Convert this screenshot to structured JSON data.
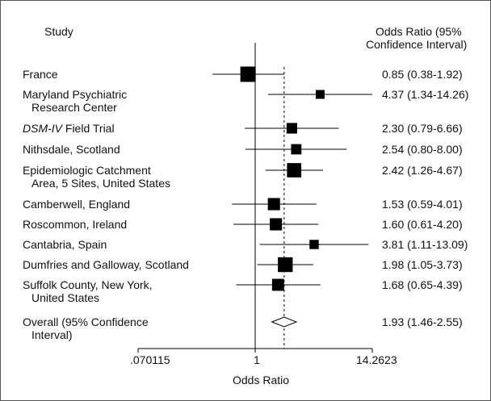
{
  "chart_data": {
    "type": "forest",
    "xscale": "log",
    "xlim": [
      0.070115,
      14.2623
    ],
    "xticks": [
      "0.070115",
      "1",
      "14.2623"
    ],
    "tick_labels": [
      ".070115",
      "1",
      "14.2623"
    ],
    "xlabel": "Odds Ratio",
    "reference_line": 1,
    "summary_line": 1.93,
    "column_headers": {
      "study": "Study",
      "or_line1": "Odds Ratio (95%",
      "or_line2": "Confidence Interval)"
    },
    "studies": [
      {
        "label_lines": [
          "France"
        ],
        "or": 0.85,
        "lo": 0.38,
        "hi": 1.92,
        "text": "0.85 (0.38-1.92)",
        "weight": 1.0
      },
      {
        "label_lines": [
          "Maryland Psychiatric",
          "Research Center"
        ],
        "or": 4.37,
        "lo": 1.34,
        "hi": 14.26,
        "text": "4.37 (1.34-14.26)",
        "weight": 0.38
      },
      {
        "label_lines": [
          "DSM-IV Field Trial"
        ],
        "italic_prefix": "DSM-IV",
        "or": 2.3,
        "lo": 0.79,
        "hi": 6.66,
        "text": "2.30 (0.79-6.66)",
        "weight": 0.55
      },
      {
        "label_lines": [
          "Nithsdale, Scotland"
        ],
        "or": 2.54,
        "lo": 0.8,
        "hi": 8.0,
        "text": "2.54 (0.80-8.00)",
        "weight": 0.52
      },
      {
        "label_lines": [
          "Epidemiologic Catchment",
          "Area, 5 Sites, United States"
        ],
        "or": 2.42,
        "lo": 1.26,
        "hi": 4.67,
        "text": "2.42 (1.26-4.67)",
        "weight": 0.9
      },
      {
        "label_lines": [
          "Camberwell, England"
        ],
        "or": 1.53,
        "lo": 0.59,
        "hi": 4.01,
        "text": "1.53 (0.59-4.01)",
        "weight": 0.7
      },
      {
        "label_lines": [
          "Roscommon, Ireland"
        ],
        "or": 1.6,
        "lo": 0.61,
        "hi": 4.2,
        "text": "1.60 (0.61-4.20)",
        "weight": 0.7
      },
      {
        "label_lines": [
          "Cantabria, Spain"
        ],
        "or": 3.81,
        "lo": 1.11,
        "hi": 13.09,
        "text": "3.81 (1.11-13.09)",
        "weight": 0.42
      },
      {
        "label_lines": [
          "Dumfries and Galloway, Scotland"
        ],
        "or": 1.98,
        "lo": 1.05,
        "hi": 3.73,
        "text": "1.98 (1.05-3.73)",
        "weight": 0.95
      },
      {
        "label_lines": [
          "Suffolk County, New York,",
          "United States"
        ],
        "or": 1.68,
        "lo": 0.65,
        "hi": 4.39,
        "text": "1.68 (0.65-4.39)",
        "weight": 0.68
      }
    ],
    "overall": {
      "label_lines": [
        "Overall (95% Confidence",
        "Interval)"
      ],
      "or": 1.93,
      "lo": 1.46,
      "hi": 2.55,
      "text": "1.93 (1.46-2.55)"
    },
    "colors": {
      "ink": "#000000",
      "text": "#111111",
      "border": "#555555"
    }
  }
}
